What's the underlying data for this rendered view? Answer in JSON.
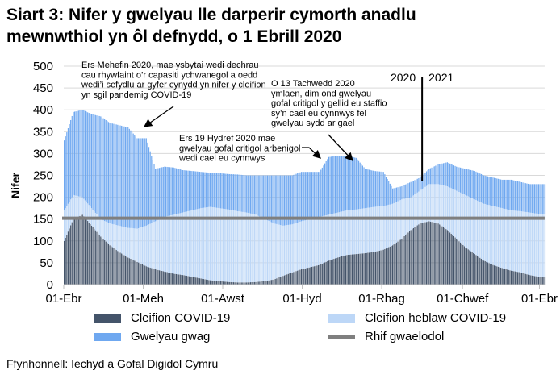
{
  "title_line1": "Siart 3: Nifer y gwelyau lle darperir cymorth anadlu",
  "title_line2": "mewnwthiol yn ôl defnydd, o 1 Ebrill 2020",
  "source": "Ffynhonnell: Iechyd a Gofal Digidol Cymru",
  "chart_data": {
    "type": "bar",
    "stacked": true,
    "ylabel": "Nifer",
    "ylim": [
      0,
      500
    ],
    "yticks": [
      "0",
      "50",
      "100",
      "150",
      "200",
      "250",
      "300",
      "350",
      "400",
      "450",
      "500"
    ],
    "xticks": [
      {
        "label": "01-Ebr",
        "date": "2020-04-01"
      },
      {
        "label": "01-Meh",
        "date": "2020-06-01"
      },
      {
        "label": "01-Awst",
        "date": "2020-08-01"
      },
      {
        "label": "01-Hyd",
        "date": "2020-10-01"
      },
      {
        "label": "01-Rhag",
        "date": "2020-12-01"
      },
      {
        "label": "01-Chwef",
        "date": "2021-02-01"
      },
      {
        "label": "01-Ebr",
        "date": "2021-04-01"
      }
    ],
    "xrange": [
      "2020-04-01",
      "2021-04-05"
    ],
    "grid": true,
    "legend_position": "bottom",
    "dates_weekly_from": "2020-04-01",
    "series": [
      {
        "name": "Cleifion COVID-19",
        "color": "#44546a",
        "values": [
          100,
          150,
          160,
          135,
          110,
          90,
          75,
          62,
          52,
          42,
          35,
          30,
          25,
          22,
          18,
          14,
          10,
          8,
          6,
          5,
          5,
          6,
          8,
          12,
          20,
          28,
          35,
          40,
          45,
          55,
          62,
          68,
          70,
          72,
          75,
          80,
          90,
          105,
          125,
          140,
          145,
          140,
          125,
          105,
          85,
          70,
          55,
          45,
          38,
          32,
          28,
          22,
          18
        ]
      },
      {
        "name": "Cleifion heblaw COVID-19",
        "color": "#bdd7f7",
        "values": [
          70,
          55,
          40,
          40,
          40,
          50,
          60,
          68,
          76,
          93,
          110,
          125,
          135,
          143,
          152,
          161,
          168,
          167,
          166,
          163,
          160,
          154,
          142,
          128,
          115,
          110,
          110,
          110,
          110,
          105,
          103,
          102,
          102,
          103,
          103,
          100,
          95,
          90,
          75,
          75,
          85,
          90,
          100,
          110,
          120,
          125,
          130,
          135,
          137,
          138,
          140,
          143,
          144
        ]
      },
      {
        "name": "Gwelyau gwag",
        "color": "#6fa8f0",
        "values": [
          160,
          190,
          200,
          215,
          235,
          230,
          230,
          230,
          207,
          200,
          120,
          115,
          108,
          97,
          90,
          83,
          78,
          80,
          81,
          84,
          85,
          90,
          100,
          110,
          115,
          112,
          113,
          108,
          103,
          132,
          130,
          125,
          118,
          90,
          82,
          78,
          35,
          30,
          35,
          30,
          35,
          45,
          55,
          55,
          60,
          65,
          65,
          65,
          65,
          70,
          67,
          65,
          68
        ]
      }
    ],
    "baseline": {
      "name": "Rhif gwaelodol",
      "value": 152,
      "color": "#7f7f7f"
    },
    "year_divider": {
      "date": "2021-01-01",
      "labels": [
        "2020",
        "2021"
      ]
    },
    "annotations": [
      {
        "lines": [
          "Ers Mehefin 2020, mae ysbytai wedi dechrau",
          "cau rhywfaint o’r capasiti ychwanegol a oedd",
          "wedi’i sefydlu ar gyfer cynydd yn nifer y cleifion",
          "yn sgil pandemig COVID-19"
        ]
      },
      {
        "lines": [
          "Ers 19 Hydref 2020 mae",
          "gwelyau gofal critigol arbenigol",
          "wedi cael eu cynnwys"
        ]
      },
      {
        "lines": [
          "O 13 Tachwedd 2020",
          "ymlaen, dim ond gwelyau",
          "gofal critigol y gellid eu staffio",
          "sy’n cael eu cynnwys fel",
          "gwelyau sydd ar gael"
        ]
      }
    ]
  }
}
